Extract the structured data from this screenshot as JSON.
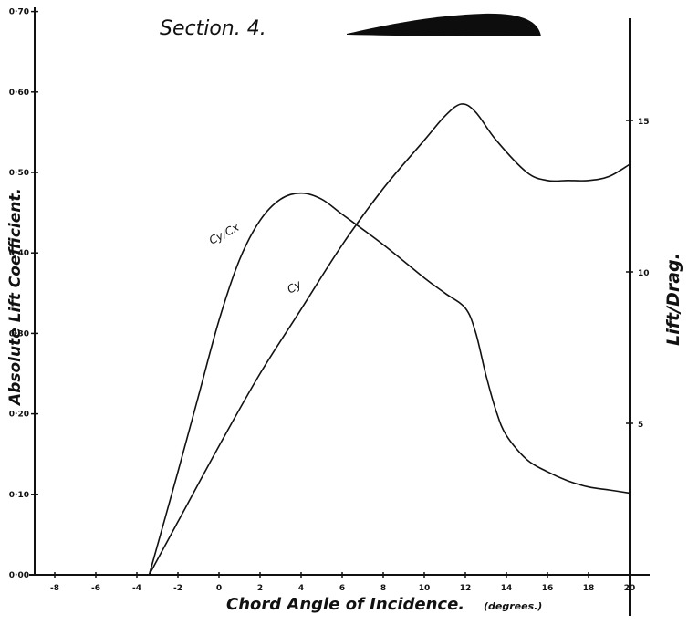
{
  "chart_data": {
    "type": "line",
    "title": "Section. 4.",
    "xlabel": "Chord Angle of Incidence.",
    "xlabel_unit": "(degrees.)",
    "ylabel_left": "Absolute Lift Coefficient.",
    "ylabel_right": "Lift/Drag.",
    "xlim": [
      -8,
      20
    ],
    "ylim_left": [
      0,
      0.7
    ],
    "ylim_right": [
      0,
      18.8
    ],
    "x_ticks": [
      "-8",
      "-6",
      "-4",
      "-2",
      "0",
      "2",
      "4",
      "6",
      "8",
      "10",
      "12",
      "14",
      "16",
      "18",
      "20"
    ],
    "y_left_ticks": [
      "0·00",
      "0·10",
      "0·20",
      "0·30",
      "0·40",
      "0·50",
      "0·60",
      "0·70"
    ],
    "y_right_ticks": [
      "5",
      "10",
      "15"
    ],
    "grid": false,
    "series": [
      {
        "name": "Cy",
        "axis": "left",
        "x": [
          -3.4,
          -2,
          0,
          2,
          4,
          6,
          8,
          10,
          11,
          11.8,
          12.5,
          13.5,
          15,
          16,
          17,
          18,
          19,
          20
        ],
        "values": [
          0.0,
          0.066,
          0.16,
          0.25,
          0.33,
          0.41,
          0.48,
          0.54,
          0.57,
          0.585,
          0.575,
          0.54,
          0.5,
          0.49,
          0.49,
          0.49,
          0.495,
          0.51
        ]
      },
      {
        "name": "Cy/Cx",
        "axis": "right",
        "x": [
          -3.4,
          -2,
          -1,
          0,
          1,
          2,
          3,
          4,
          5,
          6,
          8,
          10,
          11,
          12,
          12.5,
          13,
          13.5,
          14,
          15,
          16,
          17,
          18,
          19,
          20
        ],
        "values": [
          0.0,
          3.4,
          5.9,
          8.4,
          10.4,
          11.7,
          12.4,
          12.6,
          12.4,
          11.9,
          10.9,
          9.8,
          9.3,
          8.8,
          8.0,
          6.6,
          5.4,
          4.6,
          3.8,
          3.4,
          3.1,
          2.9,
          2.8,
          2.7
        ]
      }
    ],
    "series_labels": [
      "Cy/Cx",
      "Cy"
    ],
    "colors": {
      "ink": "#111111",
      "background": "#ffffff"
    }
  }
}
